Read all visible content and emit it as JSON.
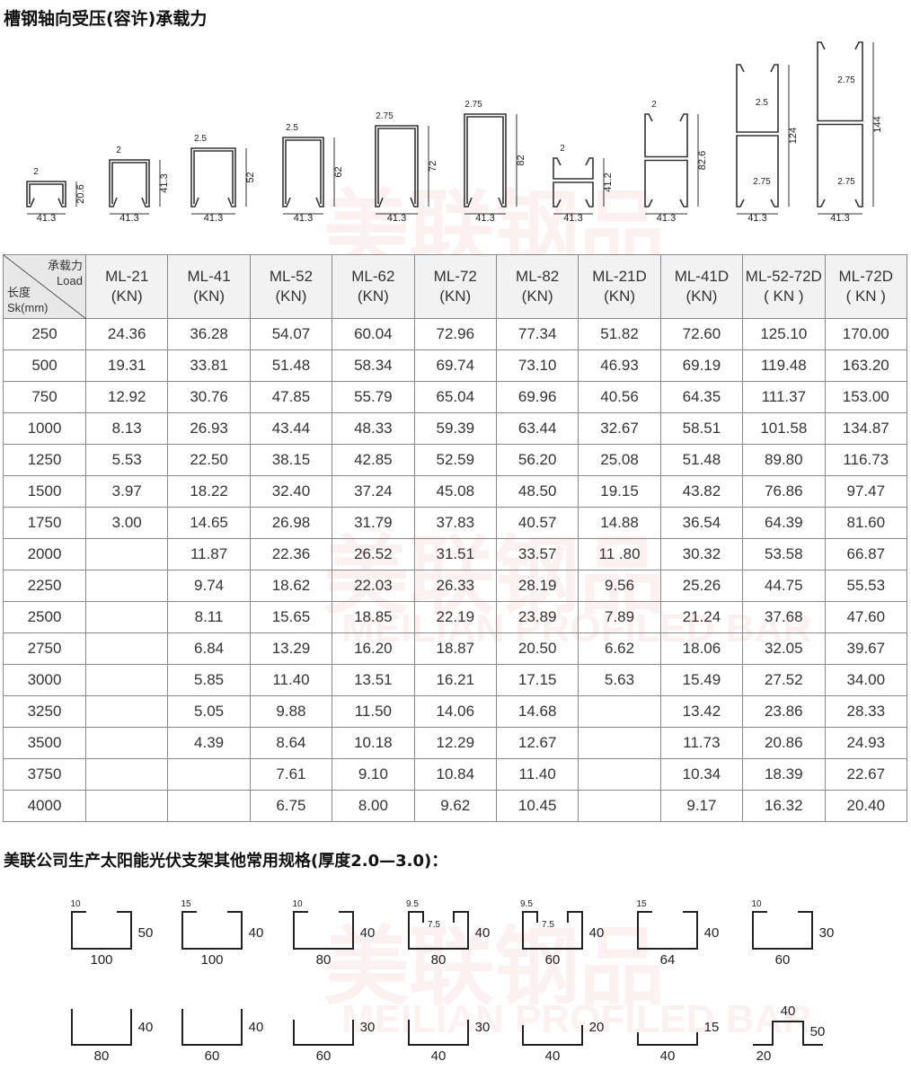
{
  "title": "槽钢轴向受压(容许)承载力",
  "watermark": {
    "cn": "美联钢品",
    "en": "MEILIAN PROFILED BAR"
  },
  "profiles": [
    {
      "name": "ML-21",
      "thick": "2",
      "height": "20.6",
      "width": "41.3"
    },
    {
      "name": "ML-41",
      "thick": "2",
      "height": "41.3",
      "width": "41.3"
    },
    {
      "name": "ML-52",
      "thick": "2.5",
      "height": "52",
      "width": "41.3"
    },
    {
      "name": "ML-62",
      "thick": "2.5",
      "height": "62",
      "width": "41.3"
    },
    {
      "name": "ML-72",
      "thick": "2.75",
      "height": "72",
      "width": "41.3"
    },
    {
      "name": "ML-82",
      "thick": "2.75",
      "height": "82",
      "width": "41.3"
    },
    {
      "name": "ML-21D",
      "thick": "2",
      "height": "41.2",
      "width": "41.3"
    },
    {
      "name": "ML-41D",
      "thick": "2",
      "height": "82.6",
      "width": "41.3"
    },
    {
      "name": "ML-52-72D",
      "thick": "2.5",
      "thick2": "2.75",
      "height": "124",
      "width": "41.3"
    },
    {
      "name": "ML-72D",
      "thick": "2.75",
      "thick2": "2.75",
      "height": "144",
      "width": "41.3"
    }
  ],
  "table": {
    "corner": {
      "top1": "承载力",
      "top2": "Load",
      "bottom1": "长度",
      "bottom2": "Sk(mm)"
    },
    "columns": [
      {
        "name": "ML-21",
        "unit": "(KN)"
      },
      {
        "name": "ML-41",
        "unit": "(KN)"
      },
      {
        "name": "ML-52",
        "unit": "(KN)"
      },
      {
        "name": "ML-62",
        "unit": "(KN)"
      },
      {
        "name": "ML-72",
        "unit": "(KN)"
      },
      {
        "name": "ML-82",
        "unit": "(KN)"
      },
      {
        "name": "ML-21D",
        "unit": "(KN)"
      },
      {
        "name": "ML-41D",
        "unit": "(KN)"
      },
      {
        "name": "ML-52-72D",
        "unit": "( KN )"
      },
      {
        "name": "ML-72D",
        "unit": "( KN )"
      }
    ],
    "rows": [
      [
        "250",
        "24.36",
        "36.28",
        "54.07",
        "60.04",
        "72.96",
        "77.34",
        "51.82",
        "72.60",
        "125.10",
        "170.00"
      ],
      [
        "500",
        "19.31",
        "33.81",
        "51.48",
        "58.34",
        "69.74",
        "73.10",
        "46.93",
        "69.19",
        "119.48",
        "163.20"
      ],
      [
        "750",
        "12.92",
        "30.76",
        "47.85",
        "55.79",
        "65.04",
        "69.96",
        "40.56",
        "64.35",
        "111.37",
        "153.00"
      ],
      [
        "1000",
        "8.13",
        "26.93",
        "43.44",
        "48.33",
        "59.39",
        "63.44",
        "32.67",
        "58.51",
        "101.58",
        "134.87"
      ],
      [
        "1250",
        "5.53",
        "22.50",
        "38.15",
        "42.85",
        "52.59",
        "56.20",
        "25.08",
        "51.48",
        "89.80",
        "116.73"
      ],
      [
        "1500",
        "3.97",
        "18.22",
        "32.40",
        "37.24",
        "45.08",
        "48.50",
        "19.15",
        "43.82",
        "76.86",
        "97.47"
      ],
      [
        "1750",
        "3.00",
        "14.65",
        "26.98",
        "31.79",
        "37.83",
        "40.57",
        "14.88",
        "36.54",
        "64.39",
        "81.60"
      ],
      [
        "2000",
        "",
        "11.87",
        "22.36",
        "26.52",
        "31.51",
        "33.57",
        "11 .80",
        "30.32",
        "53.58",
        "66.87"
      ],
      [
        "2250",
        "",
        "9.74",
        "18.62",
        "22.03",
        "26.33",
        "28.19",
        "9.56",
        "25.26",
        "44.75",
        "55.53"
      ],
      [
        "2500",
        "",
        "8.11",
        "15.65",
        "18.85",
        "22.19",
        "23.89",
        "7.89",
        "21.24",
        "37.68",
        "47.60"
      ],
      [
        "2750",
        "",
        "6.84",
        "13.29",
        "16.20",
        "18.87",
        "20.50",
        "6.62",
        "18.06",
        "32.05",
        "39.67"
      ],
      [
        "3000",
        "",
        "5.85",
        "11.40",
        "13.51",
        "16.21",
        "17.15",
        "5.63",
        "15.49",
        "27.52",
        "34.00"
      ],
      [
        "3250",
        "",
        "5.05",
        "9.88",
        "11.50",
        "14.06",
        "14.68",
        "",
        "13.42",
        "23.86",
        "28.33"
      ],
      [
        "3500",
        "",
        "4.39",
        "8.64",
        "10.18",
        "12.29",
        "12.67",
        "",
        "11.73",
        "20.86",
        "24.93"
      ],
      [
        "3750",
        "",
        "",
        "7.61",
        "9.10",
        "10.84",
        "11.40",
        "",
        "10.34",
        "18.39",
        "22.67"
      ],
      [
        "4000",
        "",
        "",
        "6.75",
        "8.00",
        "9.62",
        "10.45",
        "",
        "9.17",
        "16.32",
        "20.40"
      ]
    ]
  },
  "other_title": "美联公司生产太阳能光伏支架其他常用规格(厚度2.0—3.0)：",
  "other_specs": [
    {
      "lip": "10",
      "height": "50",
      "width": "100"
    },
    {
      "lip": "15",
      "height": "40",
      "width": "100"
    },
    {
      "lip": "10",
      "height": "40",
      "width": "80"
    },
    {
      "lip": "9.5",
      "inner": "7.5",
      "height": "40",
      "width": "80"
    },
    {
      "lip": "9.5",
      "inner": "7.5",
      "height": "40",
      "width": "60"
    },
    {
      "lip": "15",
      "height": "40",
      "width": "64"
    },
    {
      "lip": "10",
      "height": "30",
      "width": "60"
    },
    {
      "height": "40",
      "width": "80"
    },
    {
      "height": "40",
      "width": "60"
    },
    {
      "height": "30",
      "width": "60"
    },
    {
      "height": "30",
      "width": "40"
    },
    {
      "height": "20",
      "width": "40"
    },
    {
      "height": "15",
      "width": "40"
    },
    {
      "top": "40",
      "height": "50",
      "flange": "20"
    }
  ]
}
